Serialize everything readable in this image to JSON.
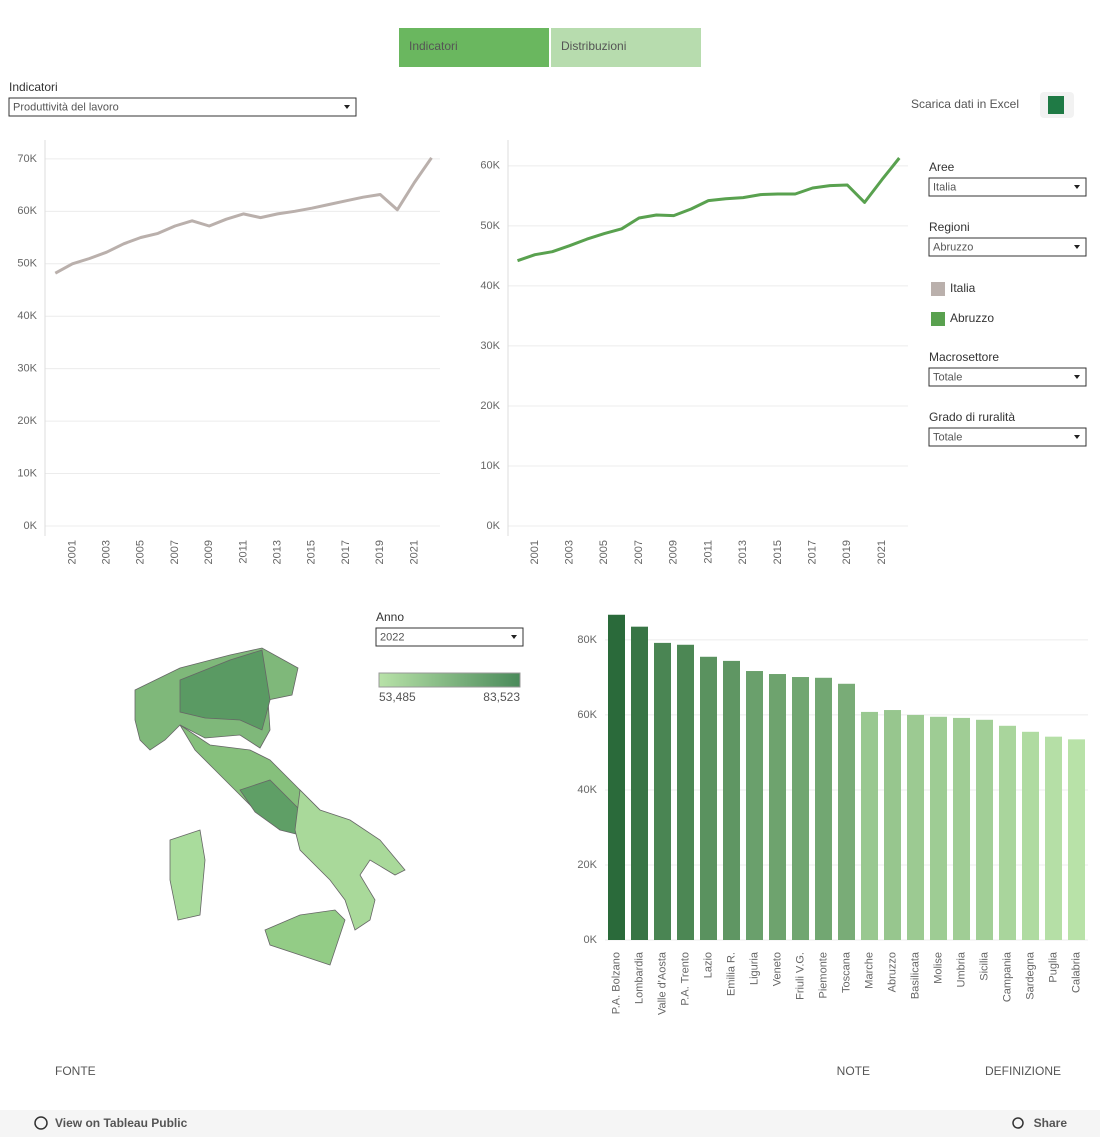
{
  "tabs": [
    "Indicatori",
    "Distribuzioni"
  ],
  "indicator": {
    "label": "Indicatori",
    "value": "Produttività del lavoro"
  },
  "download": "Scarica dati in Excel",
  "filters": [
    {
      "label": "Aree",
      "value": "Italia"
    },
    {
      "label": "Regioni",
      "value": "Abruzzo"
    },
    {
      "label": "Macrosettore",
      "value": "Totale"
    },
    {
      "label": "Grado di ruralità",
      "value": "Totale"
    }
  ],
  "map": {
    "filter": {
      "label": "Anno",
      "value": "2022"
    },
    "legend": [
      {
        "value": 53485,
        "label": "53,485"
      },
      {
        "value": 83523,
        "label": "83,523"
      }
    ],
    "color_range": [
      "#b8e2a8",
      "#4a8a5a"
    ]
  },
  "chart_data": [
    {
      "type": "line",
      "x": [
        2000,
        2001,
        2002,
        2003,
        2004,
        2005,
        2006,
        2007,
        2008,
        2009,
        2010,
        2011,
        2012,
        2013,
        2014,
        2015,
        2016,
        2017,
        2018,
        2019,
        2020,
        2021,
        2022
      ],
      "series": [
        {
          "name": "Italia",
          "color": "#bab0ac",
          "values": [
            48200,
            50000,
            51000,
            52200,
            53800,
            55000,
            55800,
            57200,
            58200,
            57200,
            58500,
            59500,
            58800,
            59500,
            60000,
            60600,
            61300,
            62000,
            62700,
            63200,
            60300,
            65500,
            70200
          ]
        }
      ],
      "xlim": [
        1999.4,
        2022.5
      ],
      "xticks": [
        2001,
        2003,
        2005,
        2007,
        2009,
        2011,
        2013,
        2015,
        2017,
        2019,
        2021
      ],
      "ylim": [
        0,
        73600
      ],
      "yticks": [
        {
          "value": 0,
          "label": "0K"
        },
        {
          "value": 10000,
          "label": "10K"
        },
        {
          "value": 20000,
          "label": "20K"
        },
        {
          "value": 30000,
          "label": "30K"
        },
        {
          "value": 40000,
          "label": "40K"
        },
        {
          "value": 50000,
          "label": "50K"
        },
        {
          "value": 60000,
          "label": "60K"
        },
        {
          "value": 70000,
          "label": "70K"
        }
      ],
      "grid": true
    },
    {
      "type": "line",
      "x": [
        2000,
        2001,
        2002,
        2003,
        2004,
        2005,
        2006,
        2007,
        2008,
        2009,
        2010,
        2011,
        2012,
        2013,
        2014,
        2015,
        2016,
        2017,
        2018,
        2019,
        2020,
        2021,
        2022
      ],
      "series": [
        {
          "name": "Abruzzo",
          "color": "#59a14f",
          "values": [
            44200,
            45200,
            45700,
            46700,
            47800,
            48700,
            49500,
            51300,
            51800,
            51700,
            52800,
            54200,
            54500,
            54700,
            55200,
            55300,
            55300,
            56300,
            56700,
            56800,
            53900,
            57700,
            61300
          ]
        }
      ],
      "xlim": [
        1999.45,
        2022.5
      ],
      "xticks": [
        2001,
        2003,
        2005,
        2007,
        2009,
        2011,
        2013,
        2015,
        2017,
        2019,
        2021
      ],
      "ylim": [
        0,
        64300
      ],
      "yticks": [
        {
          "value": 0,
          "label": "0K"
        },
        {
          "value": 10000,
          "label": "10K"
        },
        {
          "value": 20000,
          "label": "20K"
        },
        {
          "value": 30000,
          "label": "30K"
        },
        {
          "value": 40000,
          "label": "40K"
        },
        {
          "value": 50000,
          "label": "50K"
        },
        {
          "value": 60000,
          "label": "60K"
        }
      ],
      "grid": true
    },
    {
      "type": "bar",
      "categories": [
        "P.A. Bolzano",
        "Lombardia",
        "Valle d'Aosta",
        "P.A. Trento",
        "Lazio",
        "Emilia R.",
        "Liguria",
        "Veneto",
        "Friuli V.G.",
        "Piemonte",
        "Toscana",
        "Marche",
        "Abruzzo",
        "Basilicata",
        "Molise",
        "Umbria",
        "Sicilia",
        "Campania",
        "Sardegna",
        "Puglia",
        "Calabria"
      ],
      "values": [
        86700,
        83523,
        79200,
        78700,
        75500,
        74400,
        71700,
        70900,
        70100,
        69900,
        68300,
        60800,
        61300,
        60000,
        59500,
        59200,
        58700,
        57100,
        55500,
        54200,
        53485
      ],
      "color_range": [
        "#b8e2a8",
        "#2a6a3a"
      ],
      "ylim": [
        0,
        89300
      ],
      "yticks": [
        {
          "value": 0,
          "label": "0K"
        },
        {
          "value": 20000,
          "label": "20K"
        },
        {
          "value": 40000,
          "label": "40K"
        },
        {
          "value": 60000,
          "label": "60K"
        },
        {
          "value": 80000,
          "label": "80K"
        }
      ],
      "grid": true
    }
  ],
  "footer_links": [
    "FONTE",
    "NOTE",
    "DEFINIZIONE"
  ],
  "toolbar": {
    "view": "View on Tableau Public",
    "share": "Share"
  }
}
